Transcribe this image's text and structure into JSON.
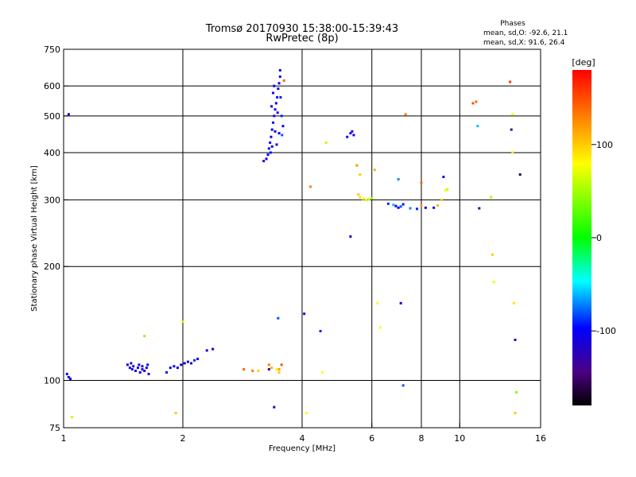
{
  "chart_data": {
    "type": "scatter",
    "title": "Tromsø 20170930 15:38:00-15:39:43",
    "subtitle": "RwPretec (8p)",
    "xlabel": "Frequency [MHz]",
    "ylabel": "Stationary phase Virtual Height [km]",
    "x_scale": "log",
    "y_scale": "log",
    "xlim": [
      1,
      16
    ],
    "ylim": [
      75,
      750
    ],
    "x_ticks": [
      1,
      2,
      4,
      6,
      8,
      10,
      16
    ],
    "y_ticks": [
      75,
      100,
      200,
      300,
      400,
      500,
      600,
      750
    ],
    "x_gridlines": [
      2,
      4,
      6,
      8,
      10
    ],
    "y_gridlines": [
      100,
      200,
      300,
      400,
      500,
      600
    ],
    "grid": true,
    "phases": {
      "header": "Phases",
      "line_o": "mean, sd,O: -92.6, 21.1",
      "line_x": "mean, sd,X:  91.6, 26.4"
    },
    "colorbar": {
      "label": "[deg]",
      "range": [
        -180,
        180
      ],
      "ticks": [
        100,
        0,
        -100
      ],
      "tick_labels": [
        "100",
        "0",
        "-100"
      ]
    },
    "points": [
      [
        1.03,
        505,
        -100
      ],
      [
        1.02,
        104,
        -95
      ],
      [
        1.03,
        102,
        -110
      ],
      [
        1.04,
        101,
        -100
      ],
      [
        1.05,
        80,
        60
      ],
      [
        1.45,
        110,
        -105
      ],
      [
        1.47,
        108,
        -110
      ],
      [
        1.49,
        107,
        -100
      ],
      [
        1.5,
        109,
        -120
      ],
      [
        1.52,
        106,
        -115
      ],
      [
        1.54,
        108,
        -105
      ],
      [
        1.56,
        105,
        -110
      ],
      [
        1.58,
        107,
        -100
      ],
      [
        1.6,
        106,
        -115
      ],
      [
        1.62,
        108,
        -105
      ],
      [
        1.64,
        104,
        -110
      ],
      [
        1.48,
        111,
        -120
      ],
      [
        1.55,
        110,
        -95
      ],
      [
        1.6,
        131,
        40
      ],
      [
        1.58,
        109,
        -120
      ],
      [
        1.63,
        110,
        -100
      ],
      [
        1.82,
        105,
        -95
      ],
      [
        1.86,
        108,
        -110
      ],
      [
        1.9,
        109,
        -105
      ],
      [
        1.94,
        108,
        -100
      ],
      [
        1.98,
        110,
        -110
      ],
      [
        2.02,
        111,
        -105
      ],
      [
        2.06,
        112,
        -100
      ],
      [
        2.1,
        111,
        -110
      ],
      [
        2.14,
        113,
        -90
      ],
      [
        2.18,
        114,
        -100
      ],
      [
        2.0,
        143,
        60
      ],
      [
        1.92,
        82,
        100
      ],
      [
        2.3,
        120,
        -110
      ],
      [
        2.38,
        121,
        -105
      ],
      [
        2.85,
        107,
        140
      ],
      [
        3.0,
        106,
        130
      ],
      [
        3.1,
        106,
        100
      ],
      [
        3.3,
        110,
        130
      ],
      [
        3.35,
        108,
        110
      ],
      [
        3.45,
        107,
        80
      ],
      [
        3.5,
        107,
        120
      ],
      [
        3.3,
        107,
        -140
      ],
      [
        3.4,
        85,
        -120
      ],
      [
        3.5,
        105,
        100
      ],
      [
        3.48,
        146,
        -80
      ],
      [
        3.55,
        110,
        150
      ],
      [
        3.2,
        380,
        -120
      ],
      [
        3.25,
        385,
        -110
      ],
      [
        3.28,
        395,
        -100
      ],
      [
        3.3,
        410,
        -95
      ],
      [
        3.32,
        425,
        -100
      ],
      [
        3.34,
        440,
        -110
      ],
      [
        3.36,
        460,
        -100
      ],
      [
        3.38,
        480,
        -95
      ],
      [
        3.4,
        500,
        -105
      ],
      [
        3.42,
        520,
        -100
      ],
      [
        3.44,
        540,
        -110
      ],
      [
        3.46,
        560,
        -95
      ],
      [
        3.48,
        590,
        -100
      ],
      [
        3.5,
        610,
        -105
      ],
      [
        3.52,
        635,
        -100
      ],
      [
        3.38,
        575,
        -110
      ],
      [
        3.35,
        530,
        -100
      ],
      [
        3.55,
        500,
        -90
      ],
      [
        3.58,
        470,
        -100
      ],
      [
        3.56,
        445,
        -80
      ],
      [
        3.6,
        620,
        140
      ],
      [
        3.52,
        660,
        -110
      ],
      [
        3.42,
        455,
        -120
      ],
      [
        3.45,
        420,
        -100
      ],
      [
        3.33,
        400,
        -95
      ],
      [
        3.5,
        450,
        -100
      ],
      [
        3.47,
        510,
        -110
      ],
      [
        3.53,
        560,
        -95
      ],
      [
        3.4,
        600,
        -100
      ],
      [
        3.36,
        415,
        -105
      ],
      [
        4.05,
        150,
        -110
      ],
      [
        4.1,
        82,
        80
      ],
      [
        4.2,
        325,
        130
      ],
      [
        4.45,
        135,
        -90
      ],
      [
        4.5,
        105,
        80
      ],
      [
        4.6,
        425,
        60
      ],
      [
        5.2,
        440,
        -110
      ],
      [
        5.3,
        450,
        -100
      ],
      [
        5.35,
        455,
        -105
      ],
      [
        5.4,
        445,
        -110
      ],
      [
        5.3,
        240,
        -110
      ],
      [
        5.5,
        370,
        120
      ],
      [
        5.6,
        350,
        100
      ],
      [
        5.55,
        310,
        100
      ],
      [
        5.6,
        305,
        90
      ],
      [
        5.7,
        302,
        80
      ],
      [
        5.8,
        300,
        70
      ],
      [
        5.9,
        301,
        60
      ],
      [
        6.0,
        303,
        50
      ],
      [
        6.1,
        360,
        110
      ],
      [
        6.2,
        160,
        80
      ],
      [
        6.3,
        138,
        80
      ],
      [
        6.6,
        293,
        -90
      ],
      [
        6.8,
        291,
        -60
      ],
      [
        6.9,
        289,
        -110
      ],
      [
        7.0,
        286,
        -100
      ],
      [
        7.1,
        288,
        -80
      ],
      [
        7.2,
        292,
        -95
      ],
      [
        7.0,
        340,
        -70
      ],
      [
        7.1,
        160,
        -100
      ],
      [
        7.2,
        97,
        -80
      ],
      [
        7.3,
        505,
        130
      ],
      [
        7.5,
        285,
        -70
      ],
      [
        7.8,
        284,
        -90
      ],
      [
        8.0,
        290,
        120
      ],
      [
        8.2,
        286,
        -100
      ],
      [
        8.6,
        286,
        -110
      ],
      [
        8.8,
        290,
        110
      ],
      [
        9.0,
        300,
        100
      ],
      [
        9.2,
        318,
        80
      ],
      [
        9.3,
        320,
        60
      ],
      [
        9.1,
        345,
        -110
      ],
      [
        8.0,
        333,
        140
      ],
      [
        10.8,
        540,
        150
      ],
      [
        11.0,
        545,
        140
      ],
      [
        11.1,
        470,
        -60
      ],
      [
        11.2,
        285,
        -130
      ],
      [
        12.0,
        305,
        50
      ],
      [
        12.1,
        215,
        100
      ],
      [
        12.2,
        182,
        70
      ],
      [
        13.4,
        615,
        160
      ],
      [
        13.5,
        460,
        -130
      ],
      [
        13.6,
        400,
        90
      ],
      [
        13.7,
        160,
        90
      ],
      [
        13.8,
        128,
        -120
      ],
      [
        13.9,
        93,
        40
      ],
      [
        13.8,
        82,
        100
      ],
      [
        14.2,
        350,
        -160
      ],
      [
        13.6,
        505,
        80
      ]
    ]
  }
}
